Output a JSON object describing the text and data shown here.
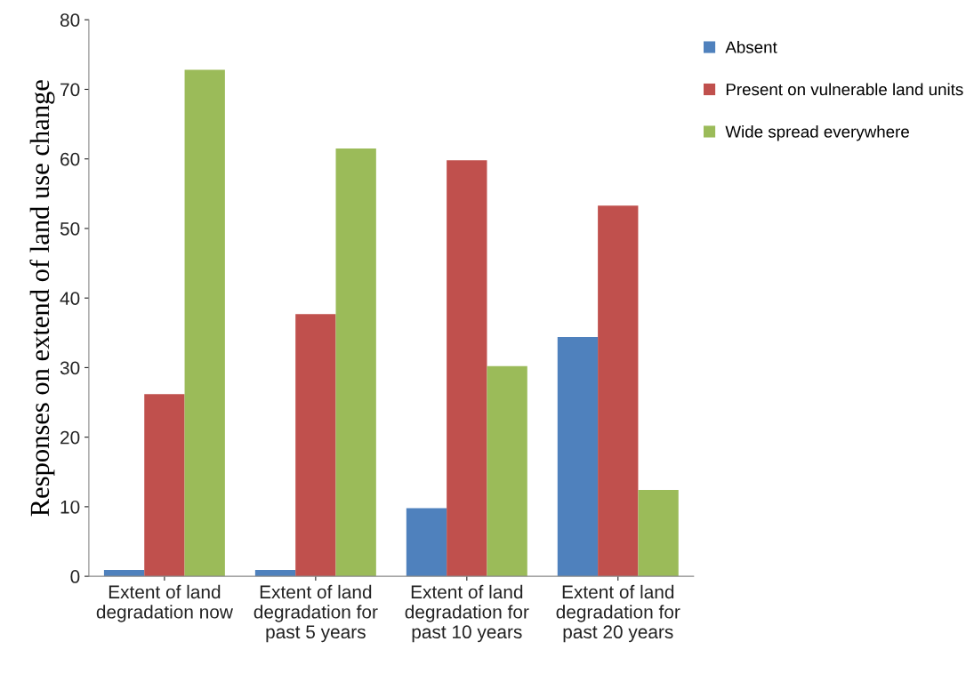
{
  "chart_data": {
    "type": "bar",
    "ylabel": "Responses on extend of land use change",
    "categories": [
      "Extent of land\ndegradation now",
      "Extent of land\ndegradation for\npast 5 years",
      "Extent of land\ndegradation for\npast 10 years",
      "Extent of land\ndegradation for\npast 20 years"
    ],
    "series": [
      {
        "name": "Absent",
        "color": "#4f81bd",
        "values": [
          0.9,
          0.9,
          9.8,
          34.4
        ]
      },
      {
        "name": "Present on vulnerable land units",
        "color": "#c0504d",
        "values": [
          26.2,
          37.7,
          59.8,
          53.3
        ]
      },
      {
        "name": "Wide spread everywhere",
        "color": "#9bbb59",
        "values": [
          72.8,
          61.5,
          30.2,
          12.4
        ]
      }
    ],
    "ylim": [
      0,
      80
    ],
    "yticks": [
      0,
      10,
      20,
      30,
      40,
      50,
      60,
      70,
      80
    ],
    "grid": false,
    "legend": "top right"
  }
}
